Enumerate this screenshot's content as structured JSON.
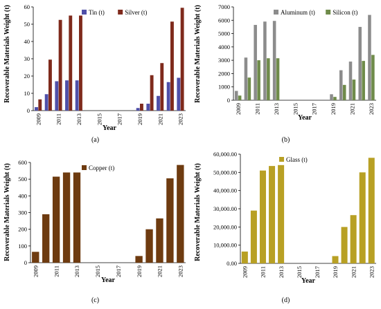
{
  "chart_data": [
    {
      "type": "bar",
      "caption": "(a)",
      "xlabel": "Year",
      "ylabel": "Recoverable Materials Weight (t)",
      "ylim": [
        0,
        60
      ],
      "yticks": [
        "0",
        "10",
        "20",
        "30",
        "40",
        "50",
        "60"
      ],
      "grid": false,
      "legend": "top",
      "categories": [
        "2009",
        "2010",
        "2011",
        "2012",
        "2013",
        "2014",
        "2015",
        "2016",
        "2017",
        "2018",
        "2019",
        "2020",
        "2021",
        "2022",
        "2023"
      ],
      "xticklabels": [
        "2009",
        "",
        "2011",
        "",
        "2013",
        "",
        "2015",
        "",
        "2017",
        "",
        "2019",
        "",
        "2021",
        "",
        "2023"
      ],
      "series": [
        {
          "name": "Tin (t)",
          "color": "#4f4fa8",
          "values": [
            2,
            9.5,
            17,
            17.5,
            17.5,
            0,
            0,
            0,
            0,
            0,
            1.5,
            4,
            8.5,
            16.5,
            19
          ]
        },
        {
          "name": "Silver (t)",
          "color": "#7f2a1c",
          "values": [
            6.5,
            29.5,
            52.5,
            55,
            55,
            0,
            0,
            0,
            0,
            0,
            4,
            20.5,
            27.5,
            51.5,
            59.5
          ]
        }
      ]
    },
    {
      "type": "bar",
      "caption": "(b)",
      "xlabel": "Year",
      "ylabel": "Recoverable Materials Weight (t)",
      "ylim": [
        0,
        7000
      ],
      "yticks": [
        "0",
        "1000",
        "2000",
        "3000",
        "4000",
        "5000",
        "6000",
        "7000"
      ],
      "grid": false,
      "legend": "top",
      "categories": [
        "2009",
        "2010",
        "2011",
        "2012",
        "2013",
        "2014",
        "2015",
        "2016",
        "2017",
        "2018",
        "2019",
        "2020",
        "2021",
        "2022",
        "2023"
      ],
      "xticklabels": [
        "2009",
        "",
        "2011",
        "",
        "2013",
        "",
        "2015",
        "",
        "2017",
        "",
        "2019",
        "",
        "2021",
        "",
        "2023"
      ],
      "series": [
        {
          "name": "Aluminum (t)",
          "color": "#8c8c8c",
          "values": [
            700,
            3200,
            5650,
            5900,
            5950,
            0,
            0,
            0,
            0,
            0,
            450,
            2250,
            2900,
            5500,
            6400
          ]
        },
        {
          "name": "Silicon (t)",
          "color": "#6f8b4a",
          "values": [
            350,
            1700,
            3000,
            3150,
            3150,
            0,
            0,
            0,
            0,
            0,
            250,
            1150,
            1550,
            2950,
            3400
          ]
        }
      ]
    },
    {
      "type": "bar",
      "caption": "(c)",
      "xlabel": "Year",
      "ylabel": "Recoverable Materials Weight (t)",
      "ylim": [
        0,
        600
      ],
      "yticks": [
        "0",
        "100",
        "200",
        "300",
        "400",
        "500",
        "600"
      ],
      "grid": false,
      "legend": "top",
      "categories": [
        "2009",
        "2010",
        "2011",
        "2012",
        "2013",
        "2014",
        "2015",
        "2016",
        "2017",
        "2018",
        "2019",
        "2020",
        "2021",
        "2022",
        "2023"
      ],
      "xticklabels": [
        "2009",
        "",
        "2011",
        "",
        "2013",
        "",
        "2015",
        "",
        "2017",
        "",
        "2019",
        "",
        "2021",
        "",
        "2023"
      ],
      "series": [
        {
          "name": "Copper (t)",
          "color": "#6e3b10",
          "values": [
            65,
            290,
            515,
            540,
            540,
            0,
            0,
            0,
            0,
            0,
            40,
            200,
            265,
            505,
            585
          ]
        }
      ]
    },
    {
      "type": "bar",
      "caption": "(d)",
      "xlabel": "Year",
      "ylabel": "Recoverable Materials Weight (t)",
      "ylim": [
        0,
        60000
      ],
      "yticks": [
        "0.00",
        "10,000.00",
        "20,000.00",
        "30,000.00",
        "40,000.00",
        "50,000.00",
        "60,000.00"
      ],
      "grid": false,
      "legend": "top",
      "categories": [
        "2009",
        "2010",
        "2011",
        "2012",
        "2013",
        "2014",
        "2015",
        "2016",
        "2017",
        "2018",
        "2019",
        "2020",
        "2021",
        "2022",
        "2023"
      ],
      "xticklabels": [
        "2009",
        "",
        "2011",
        "",
        "2013",
        "",
        "2015",
        "",
        "2017",
        "",
        "2019",
        "",
        "2021",
        "",
        "2023"
      ],
      "series": [
        {
          "name": "Glass (t)",
          "color": "#b8a024",
          "values": [
            6500,
            29000,
            51000,
            53500,
            54000,
            0,
            0,
            0,
            0,
            0,
            4000,
            20000,
            26500,
            50000,
            58000
          ]
        }
      ]
    }
  ]
}
